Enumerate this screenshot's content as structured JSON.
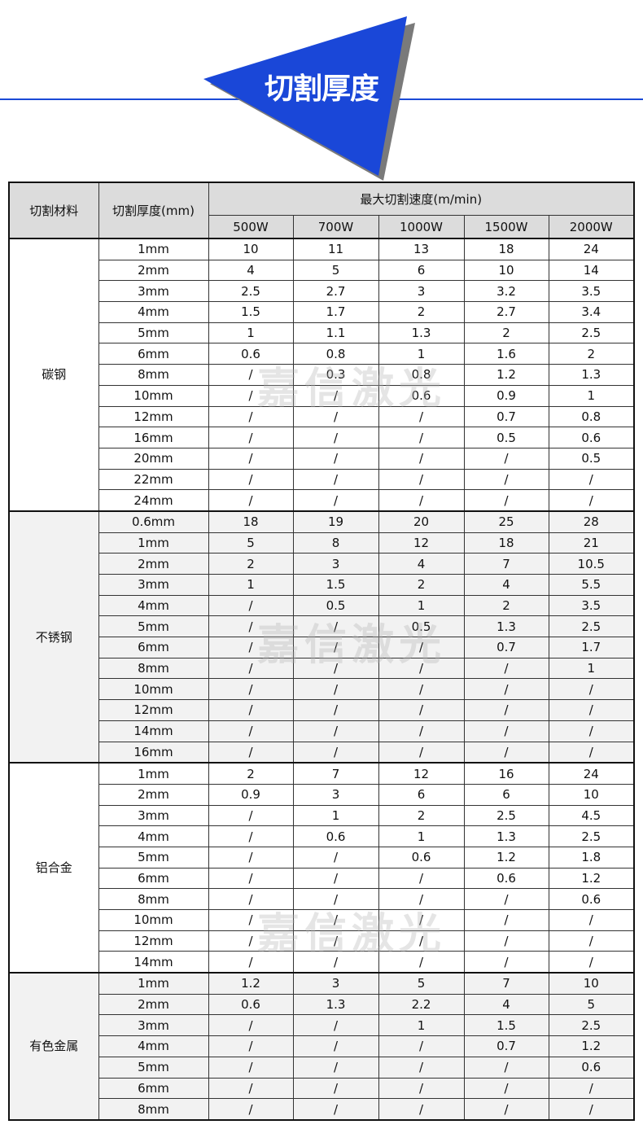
{
  "banner": {
    "title": "切割厚度",
    "accent_color": "#1a47d8",
    "shadow_color": "#7a7a7a"
  },
  "watermark": "嘉信激光",
  "table": {
    "header": {
      "material": "切割材料",
      "thickness": "切割厚度(mm)",
      "speed": "最大切割速度(m/min)",
      "powers": [
        "500W",
        "700W",
        "1000W",
        "1500W",
        "2000W"
      ]
    },
    "groups": [
      {
        "material": "碳钢",
        "shaded": false,
        "rows": [
          [
            "1mm",
            "10",
            "11",
            "13",
            "18",
            "24"
          ],
          [
            "2mm",
            "4",
            "5",
            "6",
            "10",
            "14"
          ],
          [
            "3mm",
            "2.5",
            "2.7",
            "3",
            "3.2",
            "3.5"
          ],
          [
            "4mm",
            "1.5",
            "1.7",
            "2",
            "2.7",
            "3.4"
          ],
          [
            "5mm",
            "1",
            "1.1",
            "1.3",
            "2",
            "2.5"
          ],
          [
            "6mm",
            "0.6",
            "0.8",
            "1",
            "1.6",
            "2"
          ],
          [
            "8mm",
            "/",
            "0.3",
            "0.8",
            "1.2",
            "1.3"
          ],
          [
            "10mm",
            "/",
            "/",
            "0.6",
            "0.9",
            "1"
          ],
          [
            "12mm",
            "/",
            "/",
            "/",
            "0.7",
            "0.8"
          ],
          [
            "16mm",
            "/",
            "/",
            "/",
            "0.5",
            "0.6"
          ],
          [
            "20mm",
            "/",
            "/",
            "/",
            "/",
            "0.5"
          ],
          [
            "22mm",
            "/",
            "/",
            "/",
            "/",
            "/"
          ],
          [
            "24mm",
            "/",
            "/",
            "/",
            "/",
            "/"
          ]
        ]
      },
      {
        "material": "不锈钢",
        "shaded": true,
        "rows": [
          [
            "0.6mm",
            "18",
            "19",
            "20",
            "25",
            "28"
          ],
          [
            "1mm",
            "5",
            "8",
            "12",
            "18",
            "21"
          ],
          [
            "2mm",
            "2",
            "3",
            "4",
            "7",
            "10.5"
          ],
          [
            "3mm",
            "1",
            "1.5",
            "2",
            "4",
            "5.5"
          ],
          [
            "4mm",
            "/",
            "0.5",
            "1",
            "2",
            "3.5"
          ],
          [
            "5mm",
            "/",
            "/",
            "0.5",
            "1.3",
            "2.5"
          ],
          [
            "6mm",
            "/",
            "/",
            "/",
            "0.7",
            "1.7"
          ],
          [
            "8mm",
            "/",
            "/",
            "/",
            "/",
            "1"
          ],
          [
            "10mm",
            "/",
            "/",
            "/",
            "/",
            "/"
          ],
          [
            "12mm",
            "/",
            "/",
            "/",
            "/",
            "/"
          ],
          [
            "14mm",
            "/",
            "/",
            "/",
            "/",
            "/"
          ],
          [
            "16mm",
            "/",
            "/",
            "/",
            "/",
            "/"
          ]
        ]
      },
      {
        "material": "铝合金",
        "shaded": false,
        "rows": [
          [
            "1mm",
            "2",
            "7",
            "12",
            "16",
            "24"
          ],
          [
            "2mm",
            "0.9",
            "3",
            "6",
            "6",
            "10"
          ],
          [
            "3mm",
            "/",
            "1",
            "2",
            "2.5",
            "4.5"
          ],
          [
            "4mm",
            "/",
            "0.6",
            "1",
            "1.3",
            "2.5"
          ],
          [
            "5mm",
            "/",
            "/",
            "0.6",
            "1.2",
            "1.8"
          ],
          [
            "6mm",
            "/",
            "/",
            "/",
            "0.6",
            "1.2"
          ],
          [
            "8mm",
            "/",
            "/",
            "/",
            "/",
            "0.6"
          ],
          [
            "10mm",
            "/",
            "/",
            "/",
            "/",
            "/"
          ],
          [
            "12mm",
            "/",
            "/",
            "/",
            "/",
            "/"
          ],
          [
            "14mm",
            "/",
            "/",
            "/",
            "/",
            "/"
          ]
        ]
      },
      {
        "material": "有色金属",
        "shaded": true,
        "rows": [
          [
            "1mm",
            "1.2",
            "3",
            "5",
            "7",
            "10"
          ],
          [
            "2mm",
            "0.6",
            "1.3",
            "2.2",
            "4",
            "5"
          ],
          [
            "3mm",
            "/",
            "/",
            "1",
            "1.5",
            "2.5"
          ],
          [
            "4mm",
            "/",
            "/",
            "/",
            "0.7",
            "1.2"
          ],
          [
            "5mm",
            "/",
            "/",
            "/",
            "/",
            "0.6"
          ],
          [
            "6mm",
            "/",
            "/",
            "/",
            "/",
            "/"
          ],
          [
            "8mm",
            "/",
            "/",
            "/",
            "/",
            "/"
          ]
        ]
      }
    ]
  }
}
